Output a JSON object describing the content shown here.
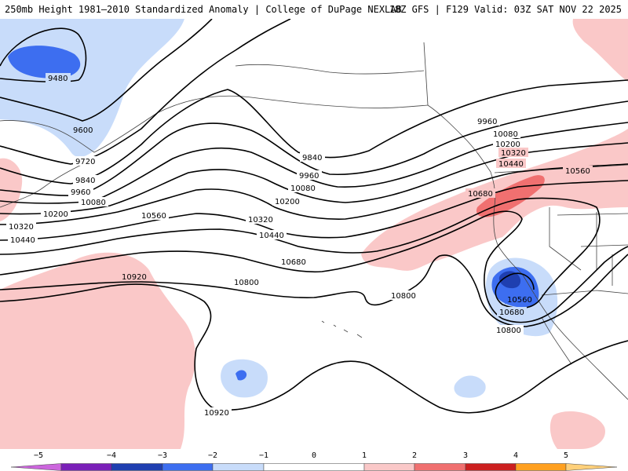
{
  "header": {
    "left_title": "250mb Height 1981–2010 Standardized Anomaly | College of DuPage NEXLAB",
    "right_title": "18Z GFS | F129 Valid: 03Z SAT NOV 22 2025"
  },
  "colors": {
    "neg5": "#cc66dd",
    "neg4": "#7a1fb8",
    "neg3": "#1f3fb0",
    "neg2": "#3d6ef0",
    "neg1": "#c8dcfa",
    "zero": "#ffffff",
    "pos1": "#fac8c8",
    "pos2": "#f07070",
    "pos3": "#cc1f1f",
    "pos4": "#ffa020",
    "pos5": "#ffd07a",
    "contour": "#000000",
    "coast": "#444444"
  },
  "contour_labels": {
    "l9480": "9480",
    "l9600": "9600",
    "l9720": "9720",
    "l9840a": "9840",
    "l9960a": "9960",
    "l10080a": "10080",
    "l10200a": "10200",
    "l10320a": "10320",
    "l10440a": "10440",
    "l10560a": "10560",
    "l10920a": "10920",
    "l9840b": "9840",
    "l9960b": "9960",
    "l10080b": "10080",
    "l10200b": "10200",
    "l10320b": "10320",
    "l10440b": "10440",
    "l10680a": "10680",
    "l10800a": "10800",
    "l10800b": "10800",
    "l9960c": "9960",
    "l10080c": "10080",
    "l10200c": "10200",
    "l10320c": "10320",
    "l10440c": "10440",
    "l10560b": "10560",
    "l10680b": "10680",
    "l10560c": "10560",
    "l10680c": "10680",
    "l10800c": "10800",
    "l10920b": "10920"
  },
  "legend": {
    "ticks": [
      "−5",
      "−4",
      "−3",
      "−2",
      "−1",
      "0",
      "1",
      "2",
      "3",
      "4",
      "5"
    ]
  }
}
